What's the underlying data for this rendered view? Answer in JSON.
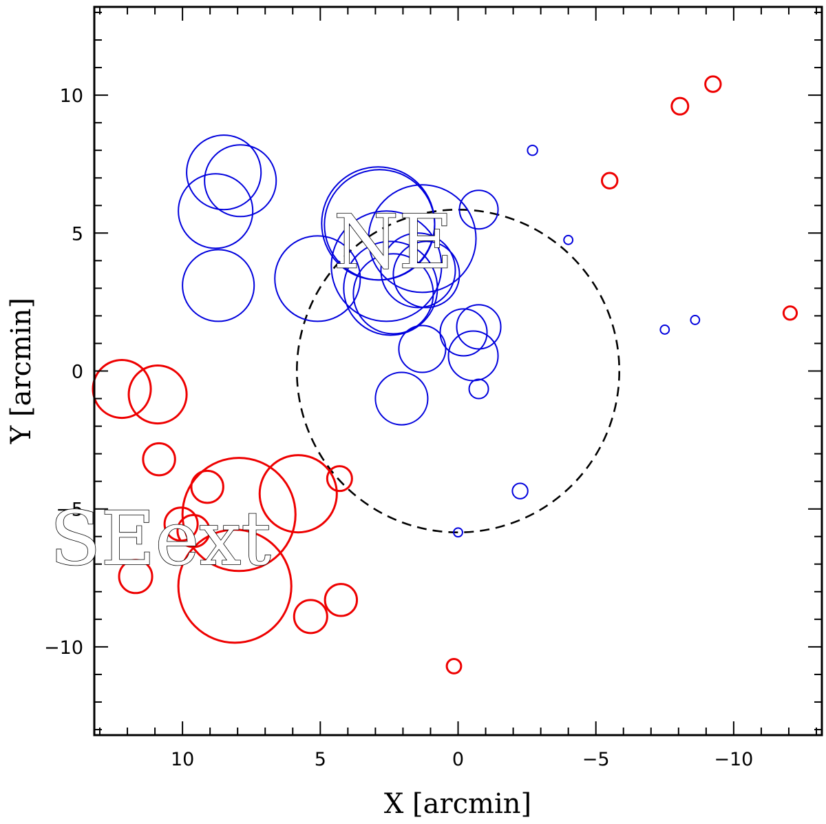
{
  "chart_data": {
    "type": "scatter",
    "title": "",
    "xlabel": "X [arcmin]",
    "ylabel": "Y [arcmin]",
    "xlim": [
      13.2,
      -13.2
    ],
    "ylim": [
      -13.2,
      13.2
    ],
    "xticks": [
      {
        "value": 10,
        "label": "10"
      },
      {
        "value": 5,
        "label": "5"
      },
      {
        "value": 0,
        "label": "0"
      },
      {
        "value": -5,
        "label": "−5"
      },
      {
        "value": -10,
        "label": "−10"
      }
    ],
    "yticks": [
      {
        "value": 10,
        "label": "10"
      },
      {
        "value": 5,
        "label": "5"
      },
      {
        "value": 0,
        "label": "0"
      },
      {
        "value": -5,
        "label": "−5"
      },
      {
        "value": -10,
        "label": "−10"
      }
    ],
    "minor_tick_step": 1,
    "dashed_circle": {
      "x": 0,
      "y": 0,
      "r": 5.85,
      "color": "#000000"
    },
    "annotations": [
      {
        "text": "NE",
        "x": 2.35,
        "y": 3.75,
        "size": 2.7
      },
      {
        "text": "SEext",
        "x": 10.8,
        "y": -7.0,
        "size": 2.7
      }
    ],
    "series": [
      {
        "name": "NE",
        "color": "#0000dd",
        "points": [
          {
            "x": 8.5,
            "y": 7.2,
            "r": 1.35
          },
          {
            "x": 7.9,
            "y": 6.9,
            "r": 1.3
          },
          {
            "x": 8.8,
            "y": 5.8,
            "r": 1.35
          },
          {
            "x": 8.7,
            "y": 3.1,
            "r": 1.3
          },
          {
            "x": 5.1,
            "y": 3.35,
            "r": 1.55
          },
          {
            "x": 2.9,
            "y": 5.35,
            "r": 2.05
          },
          {
            "x": 2.85,
            "y": 5.3,
            "r": 2.0
          },
          {
            "x": 1.3,
            "y": 4.8,
            "r": 1.95
          },
          {
            "x": 2.6,
            "y": 3.8,
            "r": 2.0
          },
          {
            "x": 2.45,
            "y": 3.0,
            "r": 1.7
          },
          {
            "x": 2.35,
            "y": 2.8,
            "r": 1.45
          },
          {
            "x": 1.45,
            "y": 3.65,
            "r": 1.35
          },
          {
            "x": 1.15,
            "y": 3.5,
            "r": 1.2
          },
          {
            "x": 1.3,
            "y": 0.8,
            "r": 0.85
          },
          {
            "x": 2.05,
            "y": -1.0,
            "r": 0.95
          },
          {
            "x": -0.75,
            "y": 5.85,
            "r": 0.7
          },
          {
            "x": -0.2,
            "y": 1.4,
            "r": 0.85
          },
          {
            "x": -0.75,
            "y": 1.6,
            "r": 0.8
          },
          {
            "x": -0.55,
            "y": 0.55,
            "r": 0.9
          },
          {
            "x": -0.75,
            "y": -0.65,
            "r": 0.35
          },
          {
            "x": -2.25,
            "y": -4.35,
            "r": 0.28
          },
          {
            "x": 0.0,
            "y": -5.85,
            "r": 0.16
          },
          {
            "x": -2.7,
            "y": 8.0,
            "r": 0.18
          },
          {
            "x": -4.0,
            "y": 4.75,
            "r": 0.16
          },
          {
            "x": -7.5,
            "y": 1.5,
            "r": 0.16
          },
          {
            "x": -8.6,
            "y": 1.85,
            "r": 0.16
          }
        ]
      },
      {
        "name": "SEext",
        "color": "#ee0000",
        "points": [
          {
            "x": 12.2,
            "y": -0.65,
            "r": 1.05
          },
          {
            "x": 10.9,
            "y": -0.85,
            "r": 1.05
          },
          {
            "x": 10.85,
            "y": -3.2,
            "r": 0.58
          },
          {
            "x": 9.1,
            "y": -4.2,
            "r": 0.58
          },
          {
            "x": 10.05,
            "y": -5.55,
            "r": 0.6
          },
          {
            "x": 9.6,
            "y": -5.8,
            "r": 0.58
          },
          {
            "x": 7.95,
            "y": -5.2,
            "r": 2.05
          },
          {
            "x": 5.8,
            "y": -4.45,
            "r": 1.4
          },
          {
            "x": 4.3,
            "y": -3.9,
            "r": 0.45
          },
          {
            "x": 8.1,
            "y": -7.8,
            "r": 2.05
          },
          {
            "x": 11.7,
            "y": -7.45,
            "r": 0.6
          },
          {
            "x": 5.35,
            "y": -8.9,
            "r": 0.6
          },
          {
            "x": 4.25,
            "y": -8.3,
            "r": 0.58
          },
          {
            "x": 0.15,
            "y": -10.7,
            "r": 0.26
          },
          {
            "x": -5.5,
            "y": 6.9,
            "r": 0.28
          },
          {
            "x": -8.05,
            "y": 9.6,
            "r": 0.3
          },
          {
            "x": -9.25,
            "y": 10.4,
            "r": 0.28
          },
          {
            "x": -12.05,
            "y": 2.1,
            "r": 0.24
          }
        ]
      }
    ]
  }
}
